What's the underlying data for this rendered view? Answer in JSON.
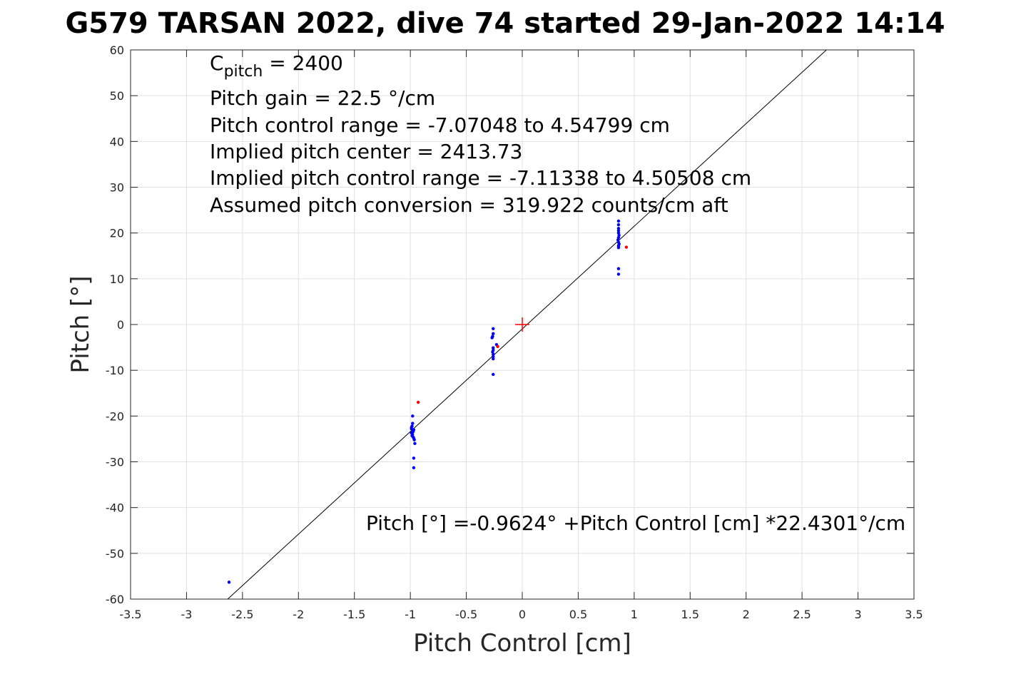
{
  "chart_data": {
    "type": "scatter",
    "title": "G579 TARSAN 2022, dive 74 started 29-Jan-2022 14:14",
    "xlabel": "Pitch Control [cm]",
    "ylabel": "Pitch [°]",
    "xlim": [
      -3.5,
      3.5
    ],
    "ylim": [
      -60,
      60
    ],
    "grid": true,
    "xticks": [
      -3.5,
      -3,
      -2.5,
      -2,
      -1.5,
      -1,
      -0.5,
      0,
      0.5,
      1,
      1.5,
      2,
      2.5,
      3,
      3.5
    ],
    "xtick_labels": [
      "-3.5",
      "-3",
      "-2.5",
      "-2",
      "-1.5",
      "-1",
      "-0.5",
      "0",
      "0.5",
      "1",
      "1.5",
      "2",
      "2.5",
      "3",
      "3.5"
    ],
    "yticks": [
      -60,
      -50,
      -40,
      -30,
      -20,
      -10,
      0,
      10,
      20,
      30,
      40,
      50,
      60
    ],
    "ytick_labels": [
      "-60",
      "-50",
      "-40",
      "-30",
      "-20",
      "-10",
      "0",
      "10",
      "20",
      "30",
      "40",
      "50",
      "60"
    ],
    "annotations": {
      "cpitch_base": "C",
      "cpitch_sub": "pitch",
      "cpitch_value": " = 2400",
      "lines": [
        "Pitch gain = 22.5 °/cm",
        "Pitch control range = -7.07048 to 4.54799 cm",
        "Implied pitch center = 2413.73",
        "Implied pitch control range = -7.11338 to 4.50508 cm",
        "Assumed pitch conversion = 319.922 counts/cm aft"
      ],
      "fit_equation": "Pitch [°] =-0.9624° +Pitch Control [cm] *22.4301°/cm"
    },
    "fit_line": {
      "intercept": -0.9624,
      "slope": 22.4301,
      "color": "#000000"
    },
    "center_marker": {
      "x": 0,
      "y": 0,
      "color": "#ff0000"
    },
    "series": [
      {
        "color": "#0000ff",
        "points": [
          [
            -2.62,
            -56.3
          ],
          [
            -0.98,
            -20.0
          ],
          [
            -0.98,
            -21.6
          ],
          [
            -0.985,
            -22.2
          ],
          [
            -0.99,
            -22.8
          ],
          [
            -0.98,
            -23.1
          ],
          [
            -0.975,
            -23.4
          ],
          [
            -0.99,
            -23.7
          ],
          [
            -0.98,
            -24.0
          ],
          [
            -0.985,
            -24.3
          ],
          [
            -0.975,
            -24.6
          ],
          [
            -0.97,
            -24.8
          ],
          [
            -0.965,
            -25.2
          ],
          [
            -0.96,
            -26.0
          ],
          [
            -0.97,
            -29.2
          ],
          [
            -0.97,
            -31.3
          ],
          [
            -0.99,
            -22.5
          ],
          [
            -0.97,
            -23.0
          ],
          [
            -0.26,
            -0.9
          ],
          [
            -0.26,
            -2.0
          ],
          [
            -0.265,
            -2.6
          ],
          [
            -0.27,
            -2.9
          ],
          [
            -0.26,
            -5.1
          ],
          [
            -0.26,
            -5.6
          ],
          [
            -0.265,
            -6.0
          ],
          [
            -0.26,
            -6.5
          ],
          [
            -0.26,
            -7.0
          ],
          [
            -0.26,
            -7.5
          ],
          [
            -0.26,
            -10.9
          ],
          [
            -0.23,
            -4.4
          ],
          [
            0.86,
            22.6
          ],
          [
            0.86,
            21.8
          ],
          [
            0.86,
            21.0
          ],
          [
            0.86,
            20.5
          ],
          [
            0.86,
            20.0
          ],
          [
            0.865,
            19.5
          ],
          [
            0.86,
            19.0
          ],
          [
            0.855,
            18.5
          ],
          [
            0.86,
            18.0
          ],
          [
            0.865,
            17.6
          ],
          [
            0.86,
            17.2
          ],
          [
            0.86,
            16.8
          ],
          [
            0.86,
            12.2
          ],
          [
            0.86,
            11.0
          ]
        ]
      },
      {
        "color": "#ff0000",
        "points": [
          [
            -0.93,
            -17.0
          ],
          [
            -0.22,
            -4.8
          ],
          [
            0.93,
            16.9
          ]
        ]
      }
    ]
  }
}
